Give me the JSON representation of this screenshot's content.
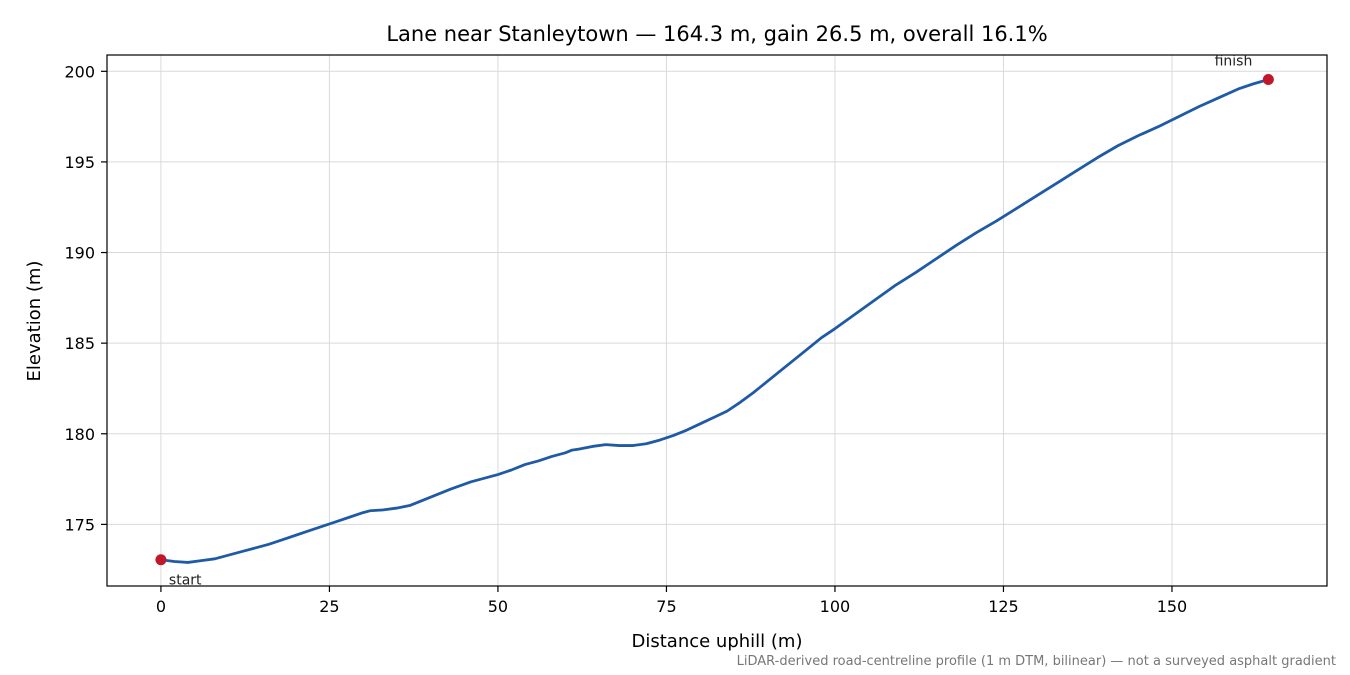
{
  "chart_data": {
    "type": "line",
    "title": "Lane near Stanleytown — 164.3 m, gain 26.5 m, overall 16.1%",
    "xlabel": "Distance uphill (m)",
    "ylabel": "Elevation (m)",
    "footnote": "LiDAR-derived road-centreline profile (1 m DTM, bilinear) — not a surveyed asphalt gradient",
    "xlim": [
      -8,
      173
    ],
    "ylim": [
      171.6,
      200.9
    ],
    "x_ticks": [
      0,
      25,
      50,
      75,
      100,
      125,
      150
    ],
    "y_ticks": [
      175,
      180,
      185,
      190,
      195,
      200
    ],
    "grid": true,
    "line_color": "#1f5aa6",
    "marker_color": "#c0182a",
    "series": [
      {
        "x": [
          0,
          2,
          4,
          6,
          8,
          10,
          12,
          14,
          16,
          18,
          20,
          22,
          24,
          26,
          28,
          30,
          31,
          33,
          35,
          37,
          40,
          43,
          46,
          48,
          50,
          52,
          54,
          56,
          58,
          60,
          61,
          62,
          64,
          66,
          68,
          70,
          72,
          74,
          76,
          78,
          80,
          82,
          84,
          86,
          88,
          90,
          92,
          95,
          98,
          100,
          103,
          106,
          109,
          112,
          115,
          118,
          121,
          124,
          127,
          130,
          133,
          136,
          139,
          142,
          145,
          148,
          151,
          154,
          157,
          160,
          162,
          164.3
        ],
        "y": [
          173.05,
          172.95,
          172.9,
          173.0,
          173.1,
          173.3,
          173.5,
          173.7,
          173.9,
          174.15,
          174.4,
          174.65,
          174.9,
          175.15,
          175.4,
          175.65,
          175.75,
          175.8,
          175.9,
          176.05,
          176.5,
          176.95,
          177.35,
          177.55,
          177.75,
          178.0,
          178.3,
          178.5,
          178.75,
          178.95,
          179.1,
          179.15,
          179.3,
          179.4,
          179.35,
          179.35,
          179.45,
          179.65,
          179.9,
          180.2,
          180.55,
          180.9,
          181.25,
          181.75,
          182.3,
          182.9,
          183.5,
          184.4,
          185.3,
          185.8,
          186.6,
          187.4,
          188.2,
          188.9,
          189.65,
          190.4,
          191.1,
          191.75,
          192.45,
          193.15,
          193.85,
          194.55,
          195.25,
          195.9,
          196.45,
          196.95,
          197.5,
          198.05,
          198.55,
          199.05,
          199.3,
          199.55
        ]
      }
    ],
    "annotations": [
      {
        "label": "start",
        "x": 0,
        "y": 173.05
      },
      {
        "label": "finish",
        "x": 164.3,
        "y": 199.55
      }
    ]
  }
}
